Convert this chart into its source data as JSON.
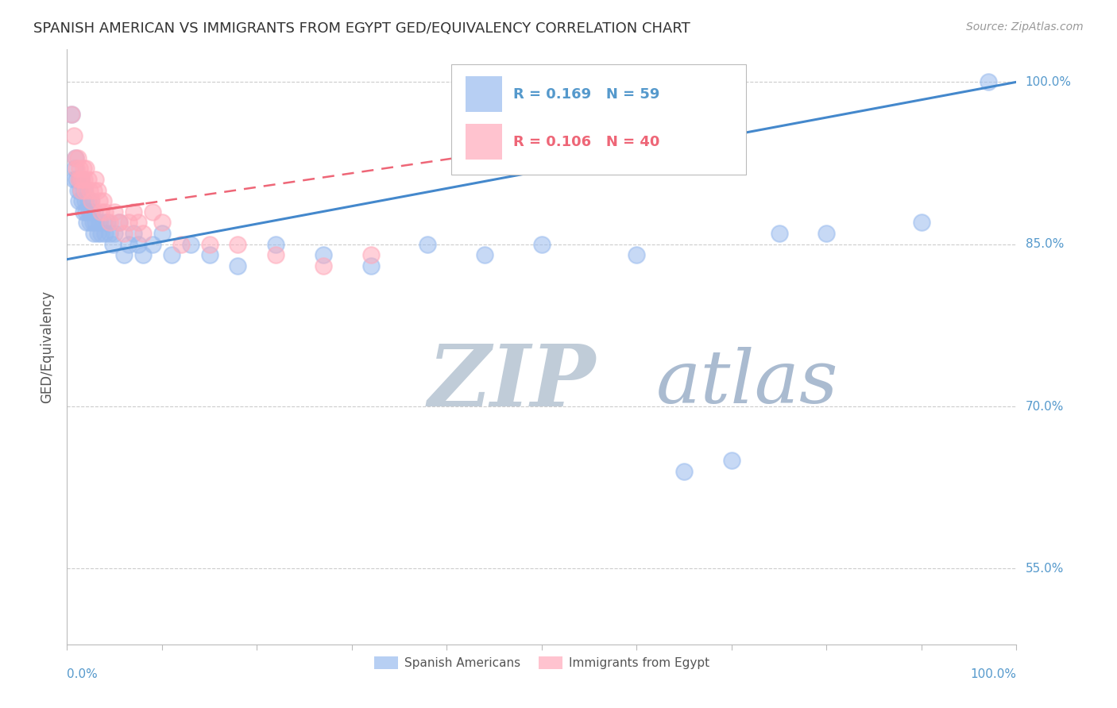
{
  "title": "SPANISH AMERICAN VS IMMIGRANTS FROM EGYPT GED/EQUIVALENCY CORRELATION CHART",
  "source": "Source: ZipAtlas.com",
  "ylabel": "GED/Equivalency",
  "ytick_labels": [
    "100.0%",
    "85.0%",
    "70.0%",
    "55.0%"
  ],
  "ytick_values": [
    1.0,
    0.85,
    0.7,
    0.55
  ],
  "xlim": [
    0.0,
    1.0
  ],
  "ylim": [
    0.48,
    1.03
  ],
  "legend1_label": "R = 0.169   N = 59",
  "legend2_label": "R = 0.106   N = 40",
  "group1_label": "Spanish Americans",
  "group2_label": "Immigrants from Egypt",
  "blue_color": "#99BBEE",
  "pink_color": "#FFAABB",
  "blue_line_color": "#4488CC",
  "pink_line_color": "#EE6677",
  "blue_R": 0.169,
  "pink_R": 0.106,
  "blue_x": [
    0.005,
    0.007,
    0.008,
    0.009,
    0.01,
    0.011,
    0.012,
    0.013,
    0.014,
    0.015,
    0.016,
    0.017,
    0.018,
    0.019,
    0.02,
    0.021,
    0.022,
    0.023,
    0.024,
    0.025,
    0.026,
    0.027,
    0.028,
    0.029,
    0.03,
    0.032,
    0.034,
    0.036,
    0.038,
    0.04,
    0.042,
    0.045,
    0.048,
    0.05,
    0.055,
    0.06,
    0.065,
    0.07,
    0.075,
    0.08,
    0.09,
    0.1,
    0.11,
    0.13,
    0.15,
    0.18,
    0.22,
    0.27,
    0.32,
    0.38,
    0.44,
    0.5,
    0.6,
    0.65,
    0.7,
    0.75,
    0.8,
    0.9,
    0.97
  ],
  "blue_y": [
    0.97,
    0.91,
    0.92,
    0.93,
    0.91,
    0.9,
    0.89,
    0.91,
    0.9,
    0.91,
    0.89,
    0.88,
    0.9,
    0.89,
    0.88,
    0.87,
    0.89,
    0.88,
    0.87,
    0.89,
    0.88,
    0.87,
    0.86,
    0.88,
    0.87,
    0.86,
    0.87,
    0.86,
    0.87,
    0.86,
    0.87,
    0.86,
    0.85,
    0.86,
    0.87,
    0.84,
    0.85,
    0.86,
    0.85,
    0.84,
    0.85,
    0.86,
    0.84,
    0.85,
    0.84,
    0.83,
    0.85,
    0.84,
    0.83,
    0.85,
    0.84,
    0.85,
    0.84,
    0.64,
    0.65,
    0.86,
    0.86,
    0.87,
    1.0
  ],
  "pink_x": [
    0.005,
    0.007,
    0.009,
    0.01,
    0.011,
    0.012,
    0.013,
    0.014,
    0.015,
    0.016,
    0.017,
    0.018,
    0.019,
    0.02,
    0.022,
    0.024,
    0.026,
    0.028,
    0.03,
    0.032,
    0.034,
    0.036,
    0.038,
    0.04,
    0.045,
    0.05,
    0.055,
    0.06,
    0.065,
    0.07,
    0.075,
    0.08,
    0.09,
    0.1,
    0.12,
    0.15,
    0.18,
    0.22,
    0.27,
    0.32
  ],
  "pink_y": [
    0.97,
    0.95,
    0.93,
    0.92,
    0.93,
    0.91,
    0.92,
    0.91,
    0.9,
    0.91,
    0.92,
    0.91,
    0.9,
    0.92,
    0.91,
    0.9,
    0.89,
    0.9,
    0.91,
    0.9,
    0.89,
    0.88,
    0.89,
    0.88,
    0.87,
    0.88,
    0.87,
    0.86,
    0.87,
    0.88,
    0.87,
    0.86,
    0.88,
    0.87,
    0.85,
    0.85,
    0.85,
    0.84,
    0.83,
    0.84
  ],
  "blue_line_x0": 0.0,
  "blue_line_x1": 1.0,
  "blue_line_y0": 0.836,
  "blue_line_y1": 1.0,
  "pink_line_x0": 0.0,
  "pink_line_x1": 0.45,
  "pink_line_y0": 0.877,
  "pink_line_y1": 0.935,
  "background_color": "#FFFFFF",
  "grid_color": "#CCCCCC",
  "title_fontsize": 13,
  "source_fontsize": 10,
  "watermark_zip": "ZIP",
  "watermark_atlas": "atlas",
  "watermark_color_zip": "#C8D8E8",
  "watermark_color_atlas": "#AABBDD",
  "watermark_fontsize": 68
}
